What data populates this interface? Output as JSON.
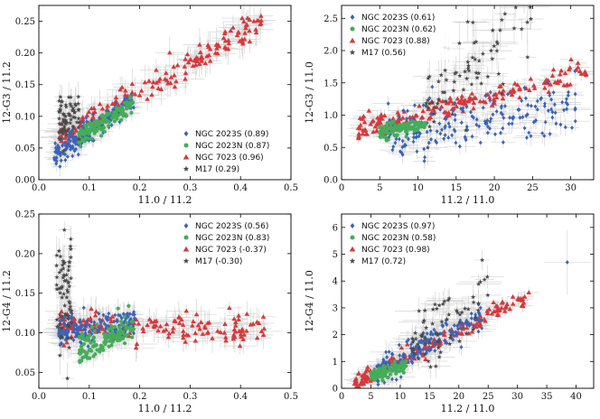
{
  "figure": {
    "description_free": true
  },
  "colors": {
    "ngc2023s": "#3a64b8",
    "ngc2023n": "#45ad5a",
    "ngc7023": "#d6393c",
    "m17": "#4a4a4a",
    "errorbar": "#c8c8c8"
  },
  "chart_data": [
    {
      "type": "scatter",
      "xlabel": "11.0 / 11.2",
      "ylabel": "12-G3 / 11.2",
      "xlim": [
        0,
        0.5
      ],
      "ylim": [
        0,
        0.275
      ],
      "xticks": [
        0.0,
        0.1,
        0.2,
        0.3,
        0.4,
        0.5
      ],
      "xtick_labels": [
        "0.0",
        "0.1",
        "0.2",
        "0.3",
        "0.4",
        "0.5"
      ],
      "yticks": [
        0.0,
        0.05,
        0.1,
        0.15,
        0.2,
        0.25
      ],
      "ytick_labels": [
        "0.00",
        "0.05",
        "0.10",
        "0.15",
        "0.20",
        "0.25"
      ],
      "legend_position": "lower-right",
      "legend": [
        {
          "key": "ngc2023s",
          "marker": "diamond",
          "label": "NGC 2023S (0.89)"
        },
        {
          "key": "ngc2023n",
          "marker": "circle",
          "label": "NGC 2023N (0.87)"
        },
        {
          "key": "ngc7023",
          "marker": "triangle",
          "label": "NGC 7023 (0.96)"
        },
        {
          "key": "m17",
          "marker": "star",
          "label": "M17 (0.29)"
        }
      ],
      "series": [
        {
          "key": "ngc7023",
          "n": 190,
          "x": [
            0.04,
            0.45
          ],
          "y_a": 0.046,
          "y_b": 0.46,
          "spread": 0.011,
          "ex": 0.03,
          "ey": 0.02,
          "seed": 11
        },
        {
          "key": "ngc2023s",
          "n": 190,
          "x": [
            0.03,
            0.19
          ],
          "y_a": 0.022,
          "y_b": 0.55,
          "spread": 0.009,
          "ex": 0.015,
          "ey": 0.012,
          "seed": 12
        },
        {
          "key": "ngc2023n",
          "n": 130,
          "x": [
            0.08,
            0.19
          ],
          "y_a": 0.025,
          "y_b": 0.52,
          "spread": 0.007,
          "ex": 0.015,
          "ey": 0.01,
          "seed": 13
        },
        {
          "key": "m17",
          "n": 70,
          "x": [
            0.04,
            0.08
          ],
          "y_a": 0.085,
          "y_b": 0.25,
          "spread": 0.018,
          "ex": 0.01,
          "ey": 0.02,
          "seed": 14
        }
      ]
    },
    {
      "type": "scatter",
      "xlabel": "11.2 / 11.0",
      "ylabel": "12-G3 / 11.0",
      "xlim": [
        0,
        33
      ],
      "ylim": [
        0,
        2.7
      ],
      "xticks": [
        0,
        5,
        10,
        15,
        20,
        25,
        30
      ],
      "xtick_labels": [
        "0",
        "5",
        "10",
        "15",
        "20",
        "25",
        "30"
      ],
      "yticks": [
        0.0,
        0.5,
        1.0,
        1.5,
        2.0,
        2.5
      ],
      "ytick_labels": [
        "0.0",
        "0.5",
        "1.0",
        "1.5",
        "2.0",
        "2.5"
      ],
      "legend_position": "upper-left",
      "legend": [
        {
          "key": "ngc2023s",
          "marker": "diamond",
          "label": "NGC 2023S (0.61)"
        },
        {
          "key": "ngc2023n",
          "marker": "circle",
          "label": "NGC 2023N (0.62)"
        },
        {
          "key": "ngc7023",
          "marker": "triangle",
          "label": "NGC 7023 (0.88)"
        },
        {
          "key": "m17",
          "marker": "star",
          "label": "M17 (0.56)"
        }
      ],
      "series": [
        {
          "key": "ngc7023",
          "n": 190,
          "x": [
            2.2,
            32
          ],
          "y_a": 0.72,
          "y_b": 0.03,
          "spread": 0.08,
          "ex": 1.2,
          "ey": 0.08,
          "seed": 21
        },
        {
          "key": "ngc2023s",
          "n": 200,
          "x": [
            6,
            31
          ],
          "y_a": 0.6,
          "y_b": 0.018,
          "spread": 0.2,
          "ex": 1.5,
          "ey": 0.12,
          "seed": 22
        },
        {
          "key": "ngc2023n",
          "n": 120,
          "x": [
            5,
            11
          ],
          "y_a": 0.58,
          "y_b": 0.028,
          "spread": 0.05,
          "ex": 0.8,
          "ey": 0.06,
          "seed": 23
        },
        {
          "key": "m17",
          "n": 80,
          "x": [
            11,
            25
          ],
          "y_a": 0.1,
          "y_b": 0.1,
          "spread": 0.35,
          "ex": 2,
          "ey": 0.25,
          "seed": 24
        }
      ]
    },
    {
      "type": "scatter",
      "xlabel": "11.0 / 11.2",
      "ylabel": "12-G4 / 11.2",
      "xlim": [
        0,
        0.5
      ],
      "ylim": [
        0.03,
        0.25
      ],
      "xticks": [
        0.0,
        0.1,
        0.2,
        0.3,
        0.4,
        0.5
      ],
      "xtick_labels": [
        "0.0",
        "0.1",
        "0.2",
        "0.3",
        "0.4",
        "0.5"
      ],
      "yticks": [
        0.05,
        0.1,
        0.15,
        0.2,
        0.25
      ],
      "ytick_labels": [
        "0.05",
        "0.10",
        "0.15",
        "0.20",
        "0.25"
      ],
      "legend_position": "upper-right",
      "legend": [
        {
          "key": "ngc2023s",
          "marker": "diamond",
          "label": "NGC 2023S (0.56)"
        },
        {
          "key": "ngc2023n",
          "marker": "circle",
          "label": "NGC 2023N (0.83)"
        },
        {
          "key": "ngc7023",
          "marker": "triangle",
          "label": "NGC 7023 (-0.37)"
        },
        {
          "key": "m17",
          "marker": "star",
          "label": "M17 (-0.30)"
        }
      ],
      "series": [
        {
          "key": "ngc7023",
          "n": 180,
          "x": [
            0.04,
            0.45
          ],
          "y_a": 0.112,
          "y_b": -0.02,
          "spread": 0.009,
          "ex": 0.03,
          "ey": 0.015,
          "seed": 31
        },
        {
          "key": "ngc2023s",
          "n": 190,
          "x": [
            0.04,
            0.19
          ],
          "y_a": 0.095,
          "y_b": 0.1,
          "spread": 0.01,
          "ex": 0.015,
          "ey": 0.012,
          "seed": 32
        },
        {
          "key": "ngc2023n",
          "n": 120,
          "x": [
            0.08,
            0.19
          ],
          "y_a": 0.06,
          "y_b": 0.25,
          "spread": 0.01,
          "ex": 0.015,
          "ey": 0.01,
          "seed": 33
        },
        {
          "key": "m17",
          "n": 70,
          "x": [
            0.035,
            0.065
          ],
          "y_a": 0.15,
          "y_b": 0.0,
          "spread": 0.035,
          "ex": 0.01,
          "ey": 0.02,
          "seed": 34
        }
      ]
    },
    {
      "type": "scatter",
      "xlabel": "11.2 / 11.0",
      "ylabel": "12-G4 / 11.0",
      "xlim": [
        0,
        43
      ],
      "ylim": [
        0,
        6.5
      ],
      "xticks": [
        0,
        5,
        10,
        15,
        20,
        25,
        30,
        35,
        40
      ],
      "xtick_labels": [
        "0",
        "5",
        "10",
        "15",
        "20",
        "25",
        "30",
        "35",
        "40"
      ],
      "yticks": [
        0,
        1,
        2,
        3,
        4,
        5,
        6
      ],
      "ytick_labels": [
        "0",
        "1",
        "2",
        "3",
        "4",
        "5",
        "6"
      ],
      "legend_position": "upper-left",
      "legend": [
        {
          "key": "ngc2023s",
          "marker": "diamond",
          "label": "NGC 2023S (0.97)"
        },
        {
          "key": "ngc2023n",
          "marker": "circle",
          "label": "NGC 2023N (0.58)"
        },
        {
          "key": "ngc7023",
          "marker": "triangle",
          "label": "NGC 7023 (0.98)"
        },
        {
          "key": "m17",
          "marker": "star",
          "label": "M17 (0.72)"
        }
      ],
      "series": [
        {
          "key": "ngc7023",
          "n": 180,
          "x": [
            2.2,
            32
          ],
          "y_a": -0.05,
          "y_b": 0.11,
          "spread": 0.15,
          "ex": 1.5,
          "ey": 0.2,
          "seed": 41
        },
        {
          "key": "ngc2023s",
          "n": 190,
          "x": [
            6,
            24
          ],
          "y_a": -0.15,
          "y_b": 0.12,
          "spread": 0.25,
          "ex": 2,
          "ey": 0.3,
          "seed": 42
        },
        {
          "key": "ngc2023n",
          "n": 120,
          "x": [
            5,
            11
          ],
          "y_a": 0.1,
          "y_b": 0.07,
          "spread": 0.1,
          "ex": 1,
          "ey": 0.1,
          "seed": 43
        },
        {
          "key": "m17",
          "n": 70,
          "x": [
            12,
            25
          ],
          "y_a": -0.5,
          "y_b": 0.17,
          "spread": 0.6,
          "ex": 3,
          "ey": 0.4,
          "seed": 44
        }
      ],
      "extra_points": [
        {
          "key": "ngc2023s",
          "x": 38.5,
          "y": 4.7,
          "ex": 4,
          "ey": 1.2
        }
      ]
    }
  ]
}
